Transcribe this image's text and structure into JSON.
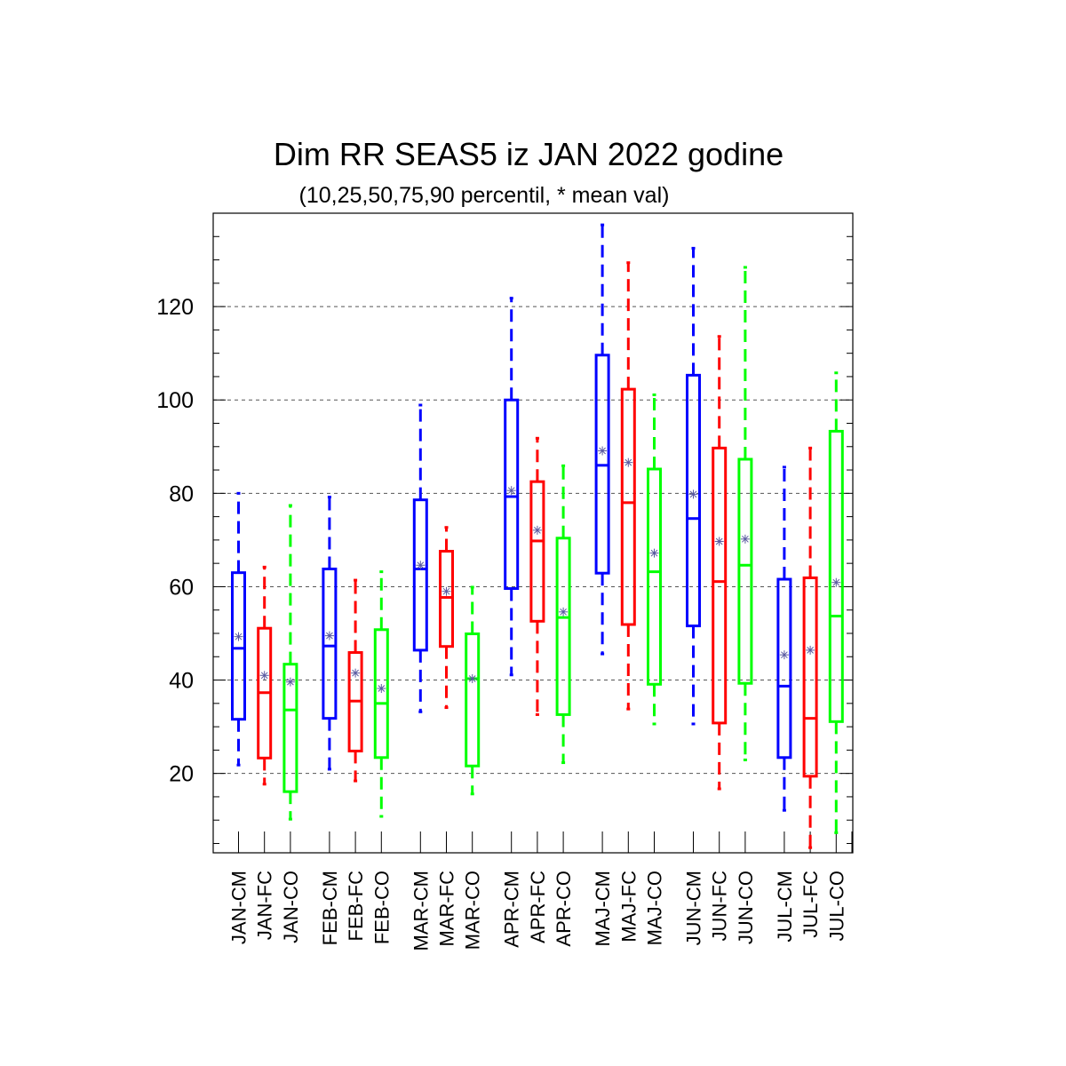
{
  "chart_data": {
    "type": "boxplot",
    "title": "Dim RR SEAS5 iz JAN 2022 godine",
    "subtitle": "(10,25,50,75,90 percentil, * mean val)",
    "ylim": [
      3,
      140
    ],
    "yticks": [
      20,
      40,
      60,
      80,
      100,
      120
    ],
    "ytick_labels": [
      "20",
      "40",
      "60",
      "80",
      "100",
      "120"
    ],
    "grid": "horizontal-dashed",
    "colors": {
      "CM": "#0000ff",
      "FC": "#ff0000",
      "CO": "#00ff00",
      "mean_marker": "#5a5aa0"
    },
    "groups": [
      {
        "name": "JAN",
        "boxes": [
          {
            "label": "JAN-CM",
            "kind": "CM",
            "p10": 21.8,
            "p25": 31.6,
            "p50": 46.8,
            "p75": 63.0,
            "p90": 80.0,
            "mean": 49.3
          },
          {
            "label": "JAN-FC",
            "kind": "FC",
            "p10": 17.7,
            "p25": 23.3,
            "p50": 37.3,
            "p75": 51.1,
            "p90": 64.2,
            "mean": 41.0
          },
          {
            "label": "JAN-CO",
            "kind": "CO",
            "p10": 10.2,
            "p25": 16.1,
            "p50": 33.6,
            "p75": 43.4,
            "p90": 77.4,
            "mean": 39.6
          }
        ]
      },
      {
        "name": "FEB",
        "boxes": [
          {
            "label": "FEB-CM",
            "kind": "CM",
            "p10": 20.9,
            "p25": 31.8,
            "p50": 47.3,
            "p75": 63.8,
            "p90": 79.2,
            "mean": 49.5
          },
          {
            "label": "FEB-FC",
            "kind": "FC",
            "p10": 18.4,
            "p25": 24.8,
            "p50": 35.5,
            "p75": 45.9,
            "p90": 61.4,
            "mean": 41.5
          },
          {
            "label": "FEB-CO",
            "kind": "CO",
            "p10": 10.8,
            "p25": 23.4,
            "p50": 35.0,
            "p75": 50.8,
            "p90": 63.2,
            "mean": 38.2
          }
        ]
      },
      {
        "name": "MAR",
        "boxes": [
          {
            "label": "MAR-CM",
            "kind": "CM",
            "p10": 33.2,
            "p25": 46.4,
            "p50": 63.8,
            "p75": 78.6,
            "p90": 98.9,
            "mean": 64.6
          },
          {
            "label": "MAR-FC",
            "kind": "FC",
            "p10": 34.1,
            "p25": 47.2,
            "p50": 57.7,
            "p75": 67.6,
            "p90": 72.7,
            "mean": 59.0
          },
          {
            "label": "MAR-CO",
            "kind": "CO",
            "p10": 15.6,
            "p25": 21.6,
            "p50": 40.3,
            "p75": 49.9,
            "p90": 59.9,
            "mean": 40.3
          }
        ]
      },
      {
        "name": "APR",
        "boxes": [
          {
            "label": "APR-CM",
            "kind": "CM",
            "p10": 41.1,
            "p25": 59.6,
            "p50": 79.3,
            "p75": 100.0,
            "p90": 121.8,
            "mean": 80.6
          },
          {
            "label": "APR-FC",
            "kind": "FC",
            "p10": 32.6,
            "p25": 52.6,
            "p50": 69.8,
            "p75": 82.5,
            "p90": 91.8,
            "mean": 72.1
          },
          {
            "label": "APR-CO",
            "kind": "CO",
            "p10": 22.3,
            "p25": 32.6,
            "p50": 53.4,
            "p75": 70.4,
            "p90": 85.9,
            "mean": 54.6
          }
        ]
      },
      {
        "name": "MAJ",
        "boxes": [
          {
            "label": "MAJ-CM",
            "kind": "CM",
            "p10": 45.6,
            "p25": 62.9,
            "p50": 86.0,
            "p75": 109.6,
            "p90": 137.5,
            "mean": 89.1
          },
          {
            "label": "MAJ-FC",
            "kind": "FC",
            "p10": 33.8,
            "p25": 51.9,
            "p50": 78.0,
            "p75": 102.3,
            "p90": 129.4,
            "mean": 86.6
          },
          {
            "label": "MAJ-CO",
            "kind": "CO",
            "p10": 30.6,
            "p25": 39.1,
            "p50": 63.2,
            "p75": 85.2,
            "p90": 101.1,
            "mean": 67.2
          }
        ]
      },
      {
        "name": "JUN",
        "boxes": [
          {
            "label": "JUN-CM",
            "kind": "CM",
            "p10": 30.6,
            "p25": 51.6,
            "p50": 74.6,
            "p75": 105.3,
            "p90": 132.5,
            "mean": 79.8
          },
          {
            "label": "JUN-FC",
            "kind": "FC",
            "p10": 16.7,
            "p25": 30.8,
            "p50": 61.1,
            "p75": 89.7,
            "p90": 113.6,
            "mean": 69.7
          },
          {
            "label": "JUN-CO",
            "kind": "CO",
            "p10": 22.9,
            "p25": 39.3,
            "p50": 64.6,
            "p75": 87.3,
            "p90": 128.4,
            "mean": 70.2
          }
        ]
      },
      {
        "name": "JUL",
        "boxes": [
          {
            "label": "JUL-CM",
            "kind": "CM",
            "p10": 12.1,
            "p25": 23.4,
            "p50": 38.7,
            "p75": 61.6,
            "p90": 85.6,
            "mean": 45.4
          },
          {
            "label": "JUL-FC",
            "kind": "FC",
            "p10": 4.1,
            "p25": 19.4,
            "p50": 31.8,
            "p75": 61.9,
            "p90": 89.7,
            "mean": 46.4
          },
          {
            "label": "JUL-CO",
            "kind": "CO",
            "p10": 7.3,
            "p25": 31.1,
            "p50": 53.7,
            "p75": 93.3,
            "p90": 105.8,
            "mean": 60.9
          }
        ]
      }
    ]
  }
}
